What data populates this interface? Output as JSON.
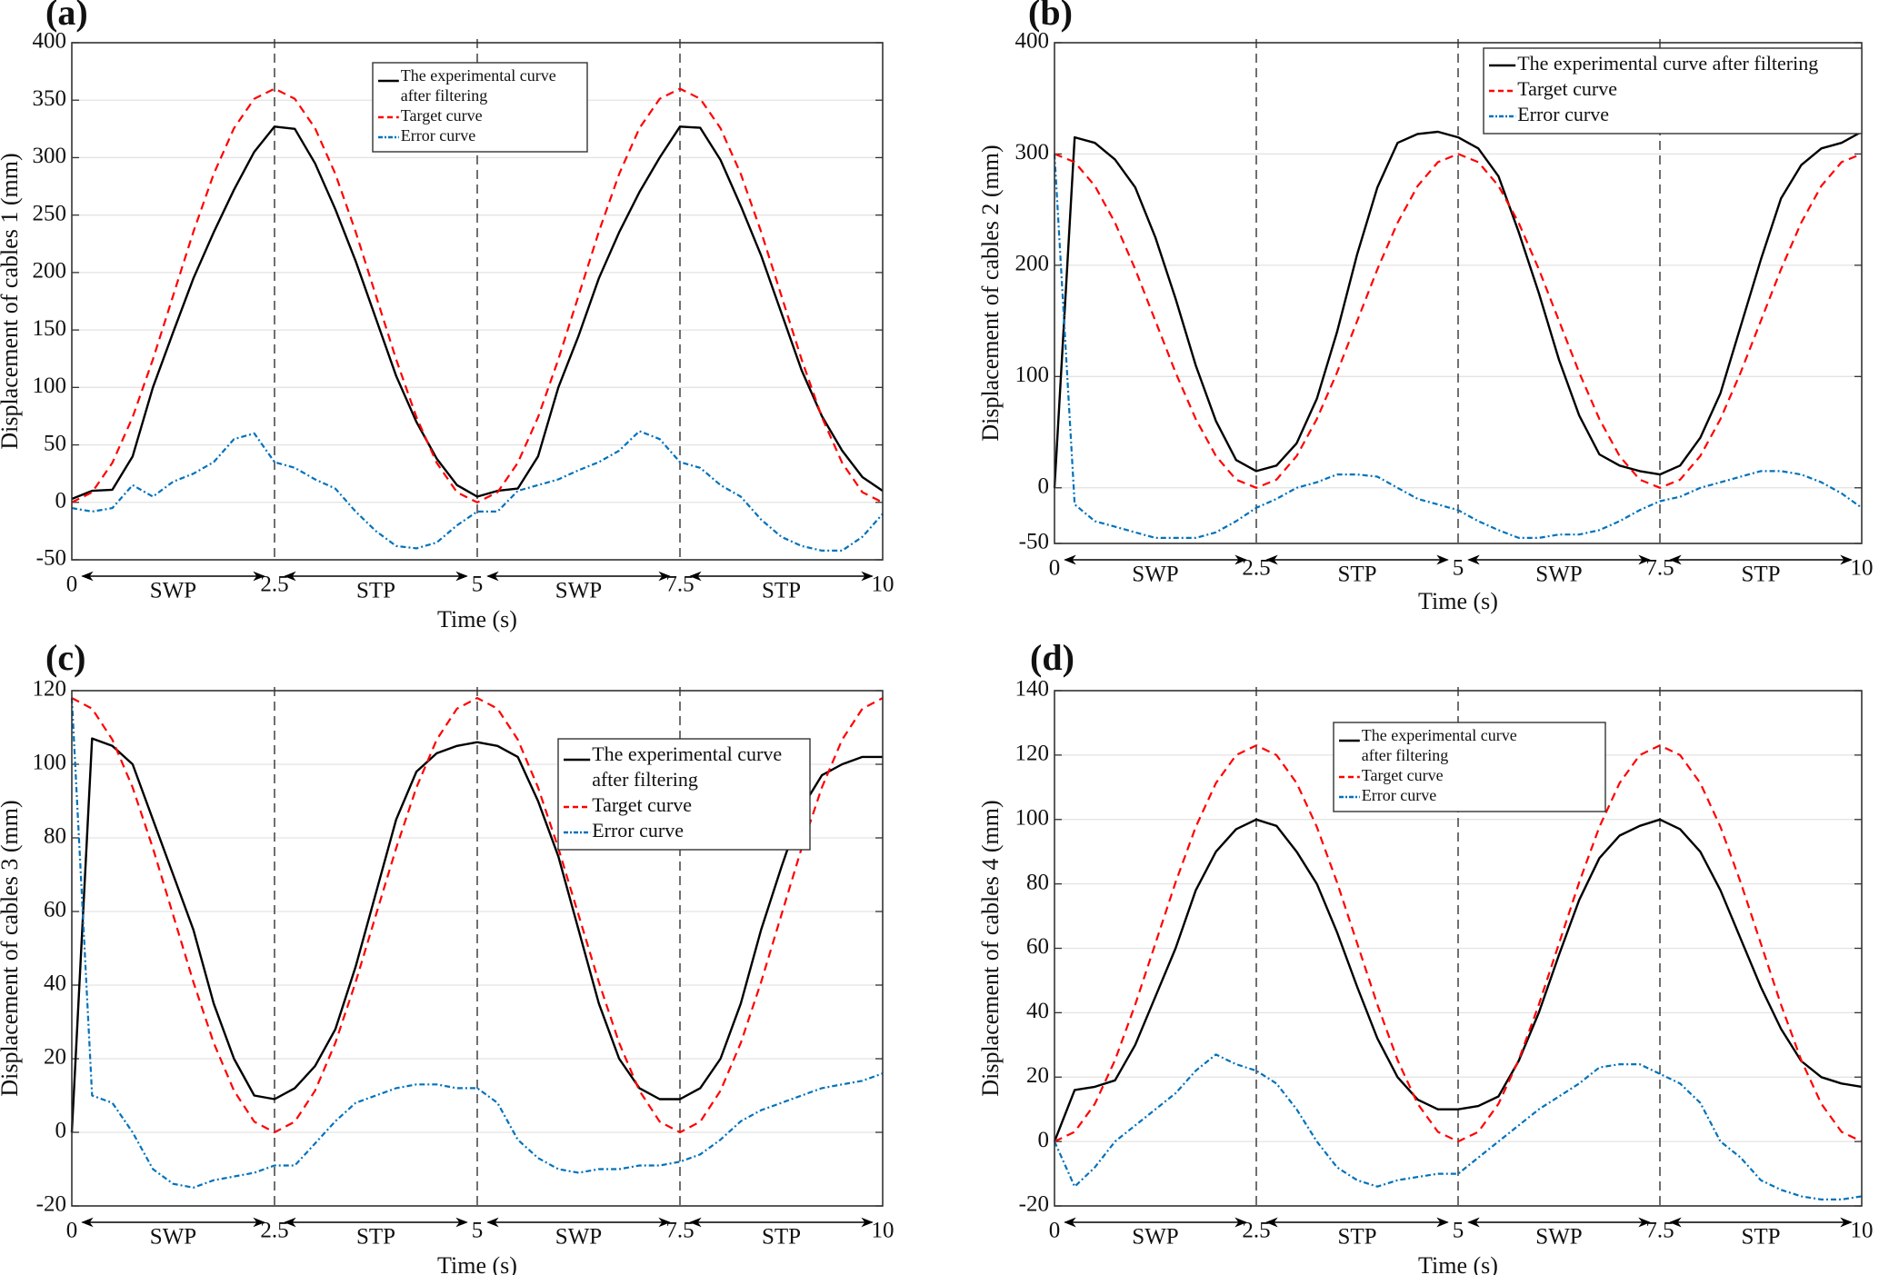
{
  "chart_data": [
    {
      "panel_label": "(a)",
      "type": "line",
      "xlabel": "Time (s)",
      "ylabel": "Displacement of cables 1 (mm)",
      "xlim": [
        0,
        10
      ],
      "ylim": [
        -50,
        400
      ],
      "xticks": [
        "0",
        "2.5",
        "5",
        "7.5",
        "10"
      ],
      "yticks": [
        -50,
        0,
        50,
        100,
        150,
        200,
        250,
        300,
        350,
        400
      ],
      "grid": "horizontal",
      "vlines": [
        2.5,
        5,
        7.5
      ],
      "phases": [
        "SWP",
        "STP",
        "SWP",
        "STP"
      ],
      "legend_position": "top-center",
      "x": [
        0,
        0.25,
        0.5,
        0.75,
        1,
        1.25,
        1.5,
        1.75,
        2,
        2.25,
        2.5,
        2.75,
        3,
        3.25,
        3.5,
        3.75,
        4,
        4.25,
        4.5,
        4.75,
        5,
        5.25,
        5.5,
        5.75,
        6,
        6.25,
        6.5,
        6.75,
        7,
        7.25,
        7.5,
        7.75,
        8,
        8.25,
        8.5,
        8.75,
        9,
        9.25,
        9.5,
        9.75,
        10
      ],
      "series": [
        {
          "name": "The experimental curve after filtering",
          "legend_lines": [
            "The experimental curve",
            "after filtering"
          ],
          "color": "#000000",
          "style": "solid",
          "values": [
            3,
            10,
            11,
            40,
            100,
            148,
            195,
            235,
            272,
            305,
            327,
            325,
            295,
            255,
            210,
            160,
            110,
            70,
            38,
            15,
            5,
            10,
            12,
            40,
            100,
            145,
            195,
            235,
            270,
            300,
            327,
            326,
            298,
            258,
            215,
            165,
            115,
            75,
            45,
            22,
            10
          ]
        },
        {
          "name": "Target curve",
          "legend_lines": [
            "Target curve"
          ],
          "color": "#ff0000",
          "style": "dashed",
          "values": [
            0,
            8.8,
            34.4,
            74.2,
            124.4,
            180,
            235.6,
            285.8,
            325.6,
            351.2,
            360,
            351.2,
            325.6,
            285.8,
            235.6,
            180,
            124.4,
            74.2,
            34.4,
            8.8,
            0,
            8.8,
            34.4,
            74.2,
            124.4,
            180,
            235.6,
            285.8,
            325.6,
            351.2,
            360,
            351.2,
            325.6,
            285.8,
            235.6,
            180,
            124.4,
            74.2,
            34.4,
            8.8,
            0
          ]
        },
        {
          "name": "Error curve",
          "legend_lines": [
            "Error curve"
          ],
          "color": "#0072bd",
          "style": "dashdot",
          "values": [
            -5,
            -8,
            -5,
            15,
            5,
            18,
            25,
            35,
            55,
            60,
            35,
            30,
            20,
            12,
            -8,
            -25,
            -38,
            -40,
            -35,
            -20,
            -8,
            -8,
            10,
            15,
            20,
            28,
            35,
            45,
            62,
            55,
            35,
            30,
            15,
            5,
            -15,
            -30,
            -38,
            -42,
            -42,
            -30,
            -10
          ]
        }
      ]
    },
    {
      "panel_label": "(b)",
      "type": "line",
      "xlabel": "Time (s)",
      "ylabel": "Displacement of cables 2 (mm)",
      "xlim": [
        0,
        10
      ],
      "ylim": [
        -50,
        400
      ],
      "xticks": [
        "0",
        "2.5",
        "5",
        "7.5",
        "10"
      ],
      "yticks": [
        -50,
        0,
        100,
        200,
        300,
        400
      ],
      "grid": "horizontal",
      "vlines": [
        2.5,
        5,
        7.5
      ],
      "phases": [
        "SWP",
        "STP",
        "SWP",
        "STP"
      ],
      "legend_position": "top-right",
      "x": [
        0,
        0.25,
        0.5,
        0.75,
        1,
        1.25,
        1.5,
        1.75,
        2,
        2.25,
        2.5,
        2.75,
        3,
        3.25,
        3.5,
        3.75,
        4,
        4.25,
        4.5,
        4.75,
        5,
        5.25,
        5.5,
        5.75,
        6,
        6.25,
        6.5,
        6.75,
        7,
        7.25,
        7.5,
        7.75,
        8,
        8.25,
        8.5,
        8.75,
        9,
        9.25,
        9.5,
        9.75,
        10
      ],
      "series": [
        {
          "name": "The experimental curve  after filtering",
          "legend_lines": [
            "The experimental curve  after filtering"
          ],
          "color": "#000000",
          "style": "solid",
          "values": [
            0,
            315,
            310,
            295,
            270,
            225,
            170,
            110,
            60,
            25,
            15,
            20,
            40,
            80,
            140,
            210,
            270,
            310,
            318,
            320,
            315,
            305,
            280,
            230,
            175,
            115,
            65,
            30,
            20,
            15,
            12,
            20,
            45,
            85,
            145,
            205,
            260,
            290,
            305,
            310,
            320
          ]
        },
        {
          "name": "Target curve",
          "legend_lines": [
            "Target curve"
          ],
          "color": "#ff0000",
          "style": "dashed",
          "values": [
            300,
            292.7,
            271.4,
            238.2,
            196.4,
            150,
            103.6,
            61.8,
            28.6,
            7.3,
            0,
            7.3,
            28.6,
            61.8,
            103.6,
            150,
            196.4,
            238.2,
            271.4,
            292.7,
            300,
            292.7,
            271.4,
            238.2,
            196.4,
            150,
            103.6,
            61.8,
            28.6,
            7.3,
            0,
            7.3,
            28.6,
            61.8,
            103.6,
            150,
            196.4,
            238.2,
            271.4,
            292.7,
            300
          ]
        },
        {
          "name": "Error curve",
          "legend_lines": [
            "Error curve"
          ],
          "color": "#0072bd",
          "style": "dashdot",
          "values": [
            300,
            -15,
            -30,
            -35,
            -40,
            -45,
            -45,
            -45,
            -40,
            -30,
            -18,
            -10,
            0,
            5,
            12,
            12,
            10,
            0,
            -10,
            -15,
            -20,
            -30,
            -38,
            -45,
            -45,
            -42,
            -42,
            -38,
            -30,
            -20,
            -12,
            -8,
            0,
            5,
            10,
            15,
            15,
            12,
            5,
            -5,
            -18
          ]
        }
      ]
    },
    {
      "panel_label": "(c)",
      "type": "line",
      "xlabel": "Time (s)",
      "ylabel": "Displacement of cables 3 (mm)",
      "xlim": [
        0,
        10
      ],
      "ylim": [
        -20,
        120
      ],
      "xticks": [
        "0",
        "2.5",
        "5",
        "7.5",
        "10"
      ],
      "yticks": [
        -20,
        0,
        20,
        40,
        60,
        80,
        100,
        120
      ],
      "grid": "horizontal",
      "vlines": [
        2.5,
        5,
        7.5
      ],
      "phases": [
        "SWP",
        "STP",
        "SWP",
        "STP"
      ],
      "legend_position": "top-right",
      "x": [
        0,
        0.25,
        0.5,
        0.75,
        1,
        1.25,
        1.5,
        1.75,
        2,
        2.25,
        2.5,
        2.75,
        3,
        3.25,
        3.5,
        3.75,
        4,
        4.25,
        4.5,
        4.75,
        5,
        5.25,
        5.5,
        5.75,
        6,
        6.25,
        6.5,
        6.75,
        7,
        7.25,
        7.5,
        7.75,
        8,
        8.25,
        8.5,
        8.75,
        9,
        9.25,
        9.5,
        9.75,
        10
      ],
      "series": [
        {
          "name": "The experimental curve after filtering",
          "legend_lines": [
            "The experimental curve",
            " after filtering"
          ],
          "color": "#000000",
          "style": "solid",
          "values": [
            0,
            107,
            105,
            100,
            85,
            70,
            55,
            35,
            20,
            10,
            9,
            12,
            18,
            28,
            45,
            65,
            85,
            98,
            103,
            105,
            106,
            105,
            102,
            90,
            75,
            55,
            35,
            20,
            12,
            9,
            9,
            12,
            20,
            35,
            55,
            72,
            88,
            97,
            100,
            102,
            102
          ]
        },
        {
          "name": "Target curve",
          "legend_lines": [
            "Target curve"
          ],
          "color": "#ff0000",
          "style": "dashed",
          "values": [
            118,
            115.1,
            106.7,
            93.7,
            77.2,
            59,
            40.8,
            24.3,
            11.3,
            2.9,
            0,
            2.9,
            11.3,
            24.3,
            40.8,
            59,
            77.2,
            93.7,
            106.7,
            115.1,
            118,
            115.1,
            106.7,
            93.7,
            77.2,
            59,
            40.8,
            24.3,
            11.3,
            2.9,
            0,
            2.9,
            11.3,
            24.3,
            40.8,
            59,
            77.2,
            93.7,
            106.7,
            115.1,
            118
          ]
        },
        {
          "name": "Error curve",
          "legend_lines": [
            "Error curve"
          ],
          "color": "#0072bd",
          "style": "dashdot",
          "values": [
            118,
            10,
            8,
            0,
            -10,
            -14,
            -15,
            -13,
            -12,
            -11,
            -9,
            -9,
            -3,
            3,
            8,
            10,
            12,
            13,
            13,
            12,
            12,
            8,
            -2,
            -7,
            -10,
            -11,
            -10,
            -10,
            -9,
            -9,
            -8,
            -6,
            -2,
            3,
            6,
            8,
            10,
            12,
            13,
            14,
            16
          ]
        }
      ]
    },
    {
      "panel_label": "(d)",
      "type": "line",
      "xlabel": "Time (s)",
      "ylabel": "Displacement of cables 4 (mm)",
      "xlim": [
        0,
        10
      ],
      "ylim": [
        -20,
        140
      ],
      "xticks": [
        "0",
        "2.5",
        "5",
        "7.5",
        "10"
      ],
      "yticks": [
        -20,
        0,
        20,
        40,
        60,
        80,
        100,
        120,
        140
      ],
      "grid": "horizontal",
      "vlines": [
        2.5,
        5,
        7.5
      ],
      "phases": [
        "SWP",
        "STP",
        "SWP",
        "STP"
      ],
      "legend_position": "top-center",
      "x": [
        0,
        0.25,
        0.5,
        0.75,
        1,
        1.25,
        1.5,
        1.75,
        2,
        2.25,
        2.5,
        2.75,
        3,
        3.25,
        3.5,
        3.75,
        4,
        4.25,
        4.5,
        4.75,
        5,
        5.25,
        5.5,
        5.75,
        6,
        6.25,
        6.5,
        6.75,
        7,
        7.25,
        7.5,
        7.75,
        8,
        8.25,
        8.5,
        8.75,
        9,
        9.25,
        9.5,
        9.75,
        10
      ],
      "series": [
        {
          "name": "The experimental curve after filtering",
          "legend_lines": [
            "The experimental curve",
            "after filtering"
          ],
          "color": "#000000",
          "style": "solid",
          "values": [
            0,
            16,
            17,
            19,
            30,
            45,
            60,
            78,
            90,
            97,
            100,
            98,
            90,
            80,
            65,
            48,
            32,
            20,
            13,
            10,
            10,
            11,
            14,
            25,
            40,
            58,
            75,
            88,
            95,
            98,
            100,
            97,
            90,
            78,
            63,
            48,
            35,
            25,
            20,
            18,
            17
          ]
        },
        {
          "name": "Target curve",
          "legend_lines": [
            "Target curve"
          ],
          "color": "#ff0000",
          "style": "dashed",
          "values": [
            0,
            3.0,
            11.7,
            25.3,
            42.5,
            61.5,
            80.5,
            97.7,
            111.3,
            120,
            123,
            120,
            111.3,
            97.7,
            80.5,
            61.5,
            42.5,
            25.3,
            11.7,
            3.0,
            0,
            3.0,
            11.7,
            25.3,
            42.5,
            61.5,
            80.5,
            97.7,
            111.3,
            120,
            123,
            120,
            111.3,
            97.7,
            80.5,
            61.5,
            42.5,
            25.3,
            11.7,
            3.0,
            0
          ]
        },
        {
          "name": "Error curve",
          "legend_lines": [
            "Error curve"
          ],
          "color": "#0072bd",
          "style": "dashdot",
          "values": [
            0,
            -14,
            -8,
            0,
            5,
            10,
            15,
            22,
            27,
            24,
            22,
            18,
            10,
            0,
            -8,
            -12,
            -14,
            -12,
            -11,
            -10,
            -10,
            -5,
            0,
            5,
            10,
            14,
            18,
            23,
            24,
            24,
            21,
            18,
            12,
            0,
            -5,
            -12,
            -15,
            -17,
            -18,
            -18,
            -17
          ]
        }
      ]
    }
  ]
}
